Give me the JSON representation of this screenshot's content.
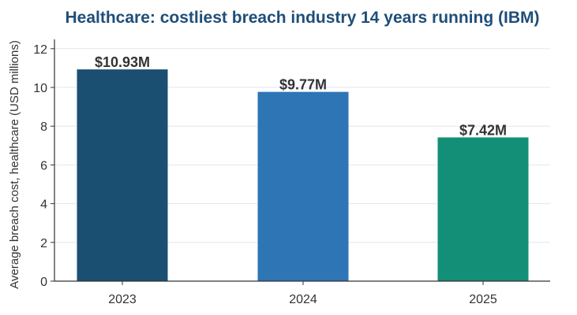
{
  "chart_data": {
    "type": "bar",
    "title": "Healthcare: costliest breach industry 14 years running (IBM)",
    "xlabel": "",
    "ylabel": "Average breach cost, healthcare (USD millions)",
    "categories": [
      "2023",
      "2024",
      "2025"
    ],
    "values": [
      10.93,
      9.77,
      7.42
    ],
    "data_labels": [
      "$10.93M",
      "$9.77M",
      "$7.42M"
    ],
    "ylim": [
      0,
      12.5
    ],
    "yticks": [
      0,
      2,
      4,
      6,
      8,
      10,
      12
    ],
    "bar_colors": [
      "#1b4f72",
      "#2e75b6",
      "#148f77"
    ],
    "title_color": "#1f4e79",
    "grid": "horizontal",
    "legend": "none"
  }
}
